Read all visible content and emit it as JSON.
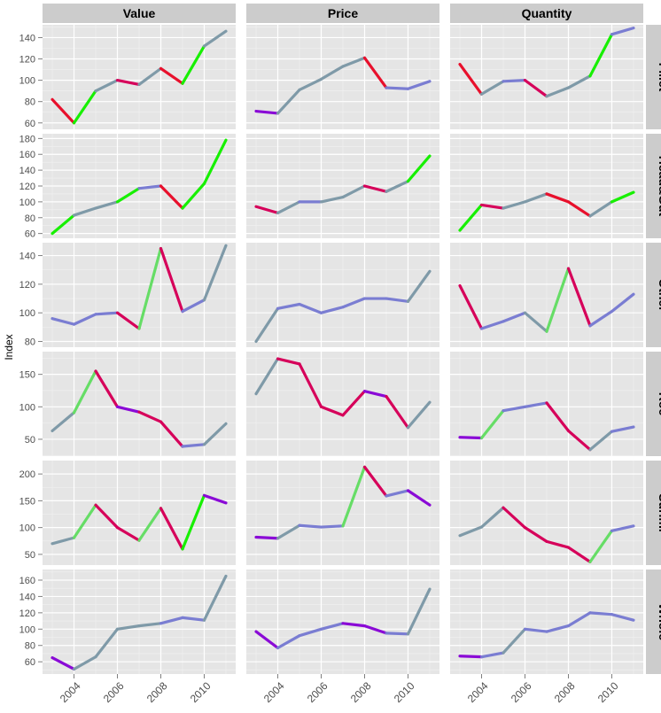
{
  "chart_data": {
    "type": "line",
    "ylabel": "Index",
    "x": [
      2003,
      2004,
      2005,
      2006,
      2007,
      2008,
      2009,
      2010,
      2011
    ],
    "x_ticks": [
      "2004",
      "2006",
      "2008",
      "2010"
    ],
    "columns": [
      "Value",
      "Price",
      "Quantity"
    ],
    "rows": [
      "Fillet",
      "Head&Gut",
      "Other",
      "Roe",
      "Surimi",
      "Whole"
    ],
    "row_ticks": {
      "Fillet": [
        "60",
        "80",
        "100",
        "120",
        "140"
      ],
      "Head&Gut": [
        "60",
        "80",
        "100",
        "120",
        "140",
        "160",
        "180"
      ],
      "Other": [
        "80",
        "100",
        "120",
        "140"
      ],
      "Roe": [
        "50",
        "100",
        "150"
      ],
      "Surimi": [
        "50",
        "100",
        "150",
        "200"
      ],
      "Whole": [
        "60",
        "80",
        "100",
        "120",
        "140",
        "160"
      ]
    },
    "row_ylim": {
      "Fillet": [
        54,
        152
      ],
      "Head&Gut": [
        54,
        186
      ],
      "Other": [
        76,
        149
      ],
      "Roe": [
        24,
        185
      ],
      "Surimi": [
        30,
        225
      ],
      "Whole": [
        45,
        173
      ]
    },
    "colors": {
      "magenta": "#d6005a",
      "red": "#e8102c",
      "green": "#17f000",
      "lightgreen": "#66dd66",
      "steel": "#7f9aa8",
      "slate": "#7a7dd2",
      "purple": "#8a0ad6"
    },
    "panels": {
      "Fillet": {
        "Value": {
          "values": [
            82,
            60,
            90,
            100,
            96,
            111,
            97,
            132,
            146
          ],
          "colors": [
            "red",
            "green",
            "steel",
            "magenta",
            "steel",
            "red",
            "green",
            "steel"
          ]
        },
        "Price": {
          "values": [
            71,
            69,
            91,
            101,
            113,
            121,
            93,
            92,
            99
          ],
          "colors": [
            "purple",
            "steel",
            "steel",
            "steel",
            "steel",
            "red",
            "slate",
            "slate"
          ]
        },
        "Quantity": {
          "values": [
            115,
            87,
            99,
            100,
            85,
            93,
            104,
            143,
            149
          ],
          "colors": [
            "red",
            "steel",
            "slate",
            "magenta",
            "steel",
            "steel",
            "green",
            "slate"
          ]
        }
      },
      "Head&Gut": {
        "Value": {
          "values": [
            60,
            83,
            92,
            100,
            117,
            120,
            92,
            123,
            178
          ],
          "colors": [
            "green",
            "steel",
            "steel",
            "green",
            "slate",
            "red",
            "green",
            "green"
          ]
        },
        "Price": {
          "values": [
            94,
            86,
            100,
            100,
            106,
            120,
            113,
            126,
            158
          ],
          "colors": [
            "magenta",
            "steel",
            "slate",
            "steel",
            "steel",
            "magenta",
            "steel",
            "green"
          ]
        },
        "Quantity": {
          "values": [
            64,
            96,
            92,
            100,
            110,
            100,
            82,
            100,
            112
          ],
          "colors": [
            "green",
            "magenta",
            "steel",
            "steel",
            "red",
            "red",
            "steel",
            "green"
          ]
        }
      },
      "Other": {
        "Value": {
          "values": [
            96,
            92,
            99,
            100,
            89,
            145,
            101,
            109,
            147
          ],
          "colors": [
            "slate",
            "slate",
            "slate",
            "magenta",
            "lightgreen",
            "magenta",
            "slate",
            "steel"
          ]
        },
        "Price": {
          "values": [
            80,
            103,
            106,
            100,
            104,
            110,
            110,
            108,
            129
          ],
          "colors": [
            "steel",
            "slate",
            "slate",
            "slate",
            "slate",
            "slate",
            "slate",
            "steel"
          ]
        },
        "Quantity": {
          "values": [
            119,
            89,
            94,
            100,
            87,
            131,
            91,
            101,
            113
          ],
          "colors": [
            "magenta",
            "slate",
            "slate",
            "steel",
            "lightgreen",
            "magenta",
            "slate",
            "slate"
          ]
        }
      },
      "Roe": {
        "Value": {
          "values": [
            63,
            91,
            155,
            100,
            92,
            77,
            39,
            42,
            74
          ],
          "colors": [
            "steel",
            "lightgreen",
            "magenta",
            "purple",
            "magenta",
            "magenta",
            "slate",
            "steel"
          ]
        },
        "Price": {
          "values": [
            120,
            174,
            166,
            100,
            87,
            124,
            116,
            68,
            107
          ],
          "colors": [
            "steel",
            "magenta",
            "magenta",
            "magenta",
            "magenta",
            "purple",
            "magenta",
            "steel"
          ]
        },
        "Quantity": {
          "values": [
            53,
            52,
            94,
            100,
            106,
            63,
            34,
            62,
            69
          ],
          "colors": [
            "purple",
            "lightgreen",
            "slate",
            "slate",
            "magenta",
            "magenta",
            "steel",
            "slate"
          ]
        }
      },
      "Surimi": {
        "Value": {
          "values": [
            70,
            81,
            142,
            100,
            76,
            136,
            60,
            160,
            146
          ],
          "colors": [
            "steel",
            "lightgreen",
            "magenta",
            "magenta",
            "lightgreen",
            "magenta",
            "green",
            "purple"
          ]
        },
        "Price": {
          "values": [
            82,
            80,
            104,
            101,
            103,
            213,
            159,
            169,
            142
          ],
          "colors": [
            "purple",
            "steel",
            "slate",
            "slate",
            "lightgreen",
            "magenta",
            "slate",
            "purple"
          ]
        },
        "Quantity": {
          "values": [
            85,
            101,
            137,
            100,
            74,
            63,
            36,
            94,
            103
          ],
          "colors": [
            "steel",
            "steel",
            "magenta",
            "magenta",
            "magenta",
            "magenta",
            "lightgreen",
            "slate"
          ]
        }
      },
      "Whole": {
        "Value": {
          "values": [
            65,
            51,
            66,
            100,
            104,
            107,
            114,
            111,
            165
          ],
          "colors": [
            "purple",
            "steel",
            "steel",
            "steel",
            "steel",
            "slate",
            "slate",
            "steel"
          ]
        },
        "Price": {
          "values": [
            97,
            77,
            92,
            100,
            107,
            104,
            95,
            94,
            149
          ],
          "colors": [
            "purple",
            "slate",
            "slate",
            "slate",
            "purple",
            "purple",
            "slate",
            "steel"
          ]
        },
        "Quantity": {
          "values": [
            67,
            66,
            71,
            100,
            97,
            104,
            120,
            118,
            111
          ],
          "colors": [
            "purple",
            "slate",
            "steel",
            "slate",
            "slate",
            "slate",
            "slate",
            "slate"
          ]
        }
      }
    }
  }
}
